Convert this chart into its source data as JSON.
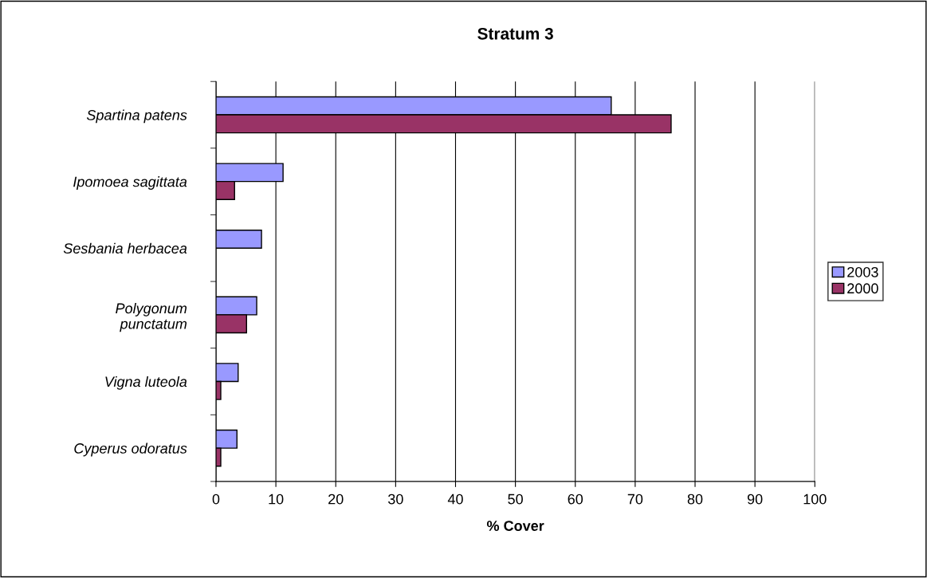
{
  "chart_data": {
    "type": "bar",
    "orientation": "horizontal",
    "title": "Stratum 3",
    "xlabel": "% Cover",
    "categories": [
      "Spartina patens",
      "Ipomoea sagittata",
      "Sesbania herbacea",
      "Polygonum\npunctatum",
      "Vigna luteola",
      "Cyperus odoratus"
    ],
    "series": [
      {
        "name": "2003",
        "color": "#9999ff",
        "values": [
          66,
          11.2,
          7.6,
          6.8,
          3.7,
          3.5
        ]
      },
      {
        "name": "2000",
        "color": "#993366",
        "values": [
          76,
          3.1,
          null,
          5.1,
          0.8,
          0.8
        ]
      }
    ],
    "xlim": [
      0,
      100
    ],
    "xticks": [
      0,
      10,
      20,
      30,
      40,
      50,
      60,
      70,
      80,
      90,
      100
    ],
    "grid": "x",
    "legend": "right"
  }
}
